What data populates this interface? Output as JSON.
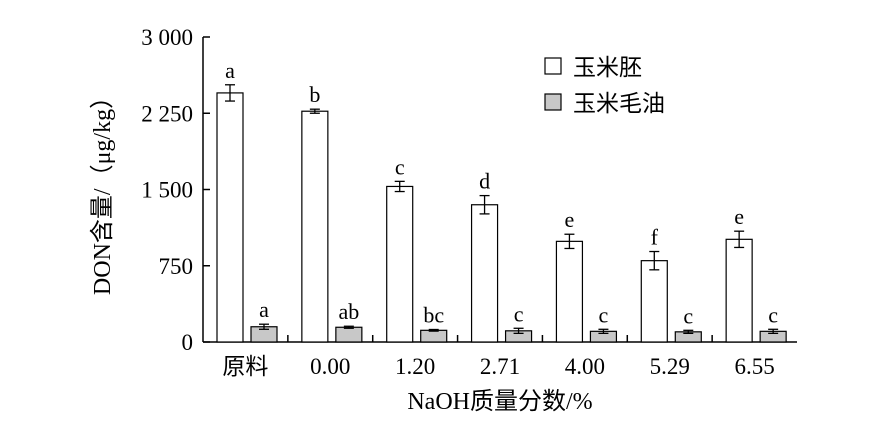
{
  "chart_data": {
    "type": "bar",
    "title": "",
    "xlabel": "NaOH质量分数/%",
    "ylabel": "DON含量/（μg/kg）",
    "categories": [
      "原料",
      "0.00",
      "1.20",
      "2.71",
      "4.00",
      "5.29",
      "6.55"
    ],
    "ylim": [
      0,
      3000
    ],
    "yticks": [
      0,
      750,
      1500,
      2250,
      3000
    ],
    "ytick_labels": [
      "0",
      "750",
      "1 500",
      "2 250",
      "3 000"
    ],
    "legend_position": "top-right",
    "grid": false,
    "series": [
      {
        "name": "玉米胚",
        "color": "#ffffff",
        "values": [
          2450,
          2270,
          1530,
          1350,
          990,
          800,
          1010
        ],
        "errors": [
          80,
          20,
          50,
          90,
          70,
          90,
          80
        ],
        "labels": [
          "a",
          "b",
          "c",
          "d",
          "e",
          "f",
          "e"
        ]
      },
      {
        "name": "玉米毛油",
        "color": "#c8c8c8",
        "values": [
          150,
          145,
          115,
          110,
          105,
          100,
          105
        ],
        "errors": [
          25,
          10,
          8,
          25,
          20,
          15,
          20
        ],
        "labels": [
          "a",
          "ab",
          "bc",
          "c",
          "c",
          "c",
          "c"
        ]
      }
    ]
  }
}
